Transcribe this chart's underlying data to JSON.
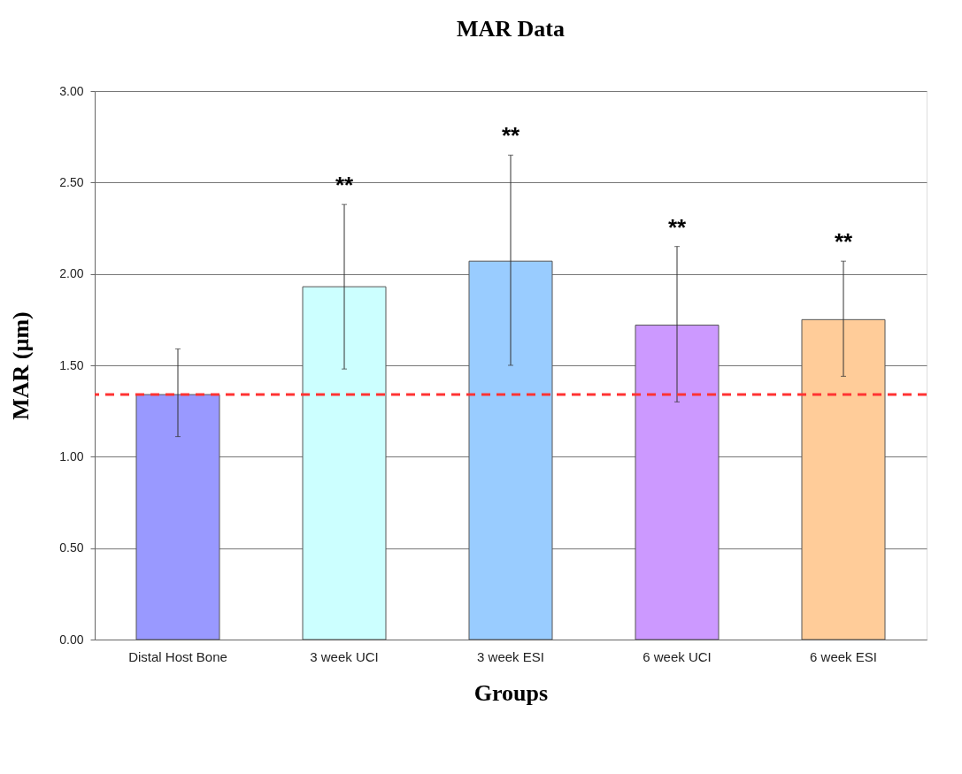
{
  "chart_data": {
    "type": "bar",
    "title": "MAR Data",
    "xlabel": "Groups",
    "ylabel": "MAR (µm)",
    "categories": [
      "Distal Host Bone",
      "3 week UCI",
      "3 week ESI",
      "6 week UCI",
      "6 week ESI"
    ],
    "values": [
      1.34,
      1.93,
      2.07,
      1.72,
      1.75
    ],
    "colors": [
      "#9999ff",
      "#ccffff",
      "#99ccff",
      "#cc99ff",
      "#ffcc99"
    ],
    "errors": [
      [
        1.11,
        1.59
      ],
      [
        1.48,
        2.38
      ],
      [
        1.5,
        2.65
      ],
      [
        1.3,
        2.15
      ],
      [
        1.44,
        2.07
      ]
    ],
    "ylim": [
      0,
      3
    ],
    "yticks": [
      {
        "value": 0,
        "label": "0.00"
      },
      {
        "value": 0.5,
        "label": "0.50"
      },
      {
        "value": 1,
        "label": "1.00"
      },
      {
        "value": 1.5,
        "label": "1.50"
      },
      {
        "value": 2,
        "label": "2.00"
      },
      {
        "value": 2.5,
        "label": "2.50"
      },
      {
        "value": 3,
        "label": "3.00"
      }
    ],
    "ref_lines": [
      {
        "axis": "y",
        "value": 1.34,
        "color": "#ff3333",
        "line_style": "dashed"
      }
    ],
    "annotations": [
      "**",
      "**",
      "**",
      "**"
    ],
    "grid": "y"
  }
}
